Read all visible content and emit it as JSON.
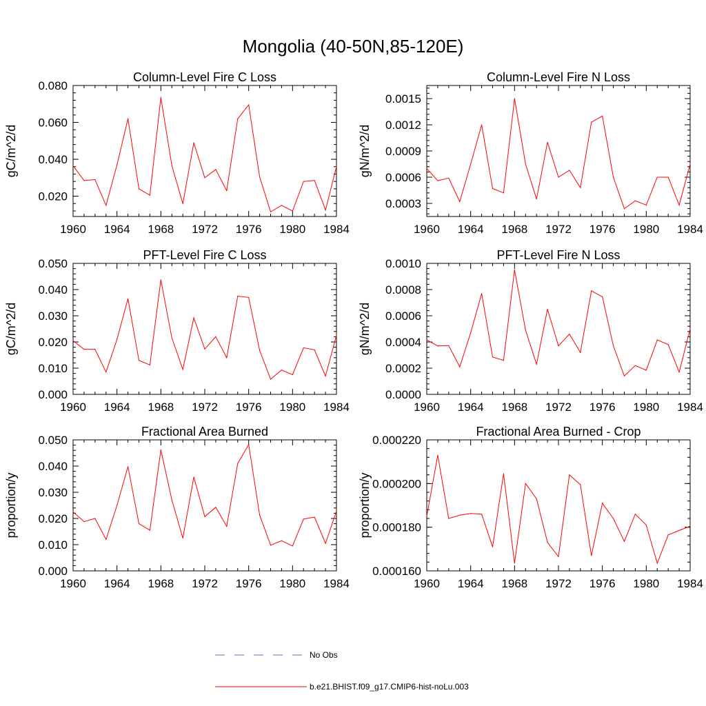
{
  "figure_title": "Mongolia (40-50N,85-120E)",
  "legend": [
    {
      "label": "No Obs",
      "color": "#6666cc",
      "style": "dashed"
    },
    {
      "label": "b.e21.BHIST.f09_g17.CMIP6-hist-noLu.003",
      "color": "#ff0000",
      "style": "solid"
    }
  ],
  "chart_data": [
    {
      "type": "line",
      "title": "Column-Level Fire C Loss",
      "ylabel": "gC/m^2/d",
      "xlim": [
        1960,
        1984
      ],
      "ylim": [
        0.009,
        0.08
      ],
      "xticks": [
        "1960",
        "1964",
        "1968",
        "1972",
        "1976",
        "1980",
        "1984"
      ],
      "yticks": [
        0.02,
        0.04,
        0.06,
        0.08
      ],
      "ytick_labels": [
        "0.020",
        "0.040",
        "0.060",
        "0.080"
      ],
      "series_color": "#ff0000",
      "x": [
        1960,
        1961,
        1962,
        1963,
        1964,
        1965,
        1966,
        1967,
        1968,
        1969,
        1970,
        1971,
        1972,
        1973,
        1974,
        1975,
        1976,
        1977,
        1978,
        1979,
        1980,
        1981,
        1982,
        1983,
        1984
      ],
      "values": [
        0.0365,
        0.0285,
        0.029,
        0.015,
        0.037,
        0.062,
        0.024,
        0.0205,
        0.0735,
        0.0365,
        0.016,
        0.049,
        0.03,
        0.0345,
        0.023,
        0.062,
        0.0695,
        0.0305,
        0.0115,
        0.015,
        0.012,
        0.028,
        0.0285,
        0.0125,
        0.036
      ]
    },
    {
      "type": "line",
      "title": "Column-Level Fire N Loss",
      "ylabel": "gN/m^2/d",
      "xlim": [
        1960,
        1984
      ],
      "ylim": [
        0.00015,
        0.00165
      ],
      "xticks": [
        "1960",
        "1964",
        "1968",
        "1972",
        "1976",
        "1980",
        "1984"
      ],
      "yticks": [
        0.0003,
        0.0006,
        0.0009,
        0.0012,
        0.0015
      ],
      "ytick_labels": [
        "0.0003",
        "0.0006",
        "0.0009",
        "0.0012",
        "0.0015"
      ],
      "series_color": "#ff0000",
      "x": [
        1960,
        1961,
        1962,
        1963,
        1964,
        1965,
        1966,
        1967,
        1968,
        1969,
        1970,
        1971,
        1972,
        1973,
        1974,
        1975,
        1976,
        1977,
        1978,
        1979,
        1980,
        1981,
        1982,
        1983,
        1984
      ],
      "values": [
        0.0007,
        0.00056,
        0.00059,
        0.00032,
        0.00075,
        0.0012,
        0.00047,
        0.00042,
        0.0015,
        0.00075,
        0.00035,
        0.001,
        0.0006,
        0.00068,
        0.00048,
        0.00123,
        0.0013,
        0.0006,
        0.00024,
        0.00033,
        0.00028,
        0.0006,
        0.0006,
        0.00028,
        0.00075
      ]
    },
    {
      "type": "line",
      "title": "PFT-Level Fire C Loss",
      "ylabel": "gC/m^2/d",
      "xlim": [
        1960,
        1984
      ],
      "ylim": [
        0,
        0.05
      ],
      "xticks": [
        "1960",
        "1964",
        "1968",
        "1972",
        "1976",
        "1980",
        "1984"
      ],
      "yticks": [
        0,
        0.01,
        0.02,
        0.03,
        0.04,
        0.05
      ],
      "ytick_labels": [
        "0.000",
        "0.010",
        "0.020",
        "0.030",
        "0.040",
        "0.050"
      ],
      "series_color": "#ff0000",
      "x": [
        1960,
        1961,
        1962,
        1963,
        1964,
        1965,
        1966,
        1967,
        1968,
        1969,
        1970,
        1971,
        1972,
        1973,
        1974,
        1975,
        1976,
        1977,
        1978,
        1979,
        1980,
        1981,
        1982,
        1983,
        1984
      ],
      "values": [
        0.0205,
        0.0172,
        0.0172,
        0.0085,
        0.021,
        0.0365,
        0.013,
        0.0112,
        0.0437,
        0.0215,
        0.0095,
        0.0292,
        0.0173,
        0.022,
        0.014,
        0.0375,
        0.037,
        0.0168,
        0.0058,
        0.0093,
        0.0075,
        0.0178,
        0.017,
        0.007,
        0.0225
      ]
    },
    {
      "type": "line",
      "title": "PFT-Level Fire N Loss",
      "ylabel": "gN/m^2/d",
      "xlim": [
        1960,
        1984
      ],
      "ylim": [
        0,
        0.001
      ],
      "xticks": [
        "1960",
        "1964",
        "1968",
        "1972",
        "1976",
        "1980",
        "1984"
      ],
      "yticks": [
        0,
        0.0002,
        0.0004,
        0.0006,
        0.0008,
        0.001
      ],
      "ytick_labels": [
        "0.0000",
        "0.0002",
        "0.0004",
        "0.0006",
        "0.0008",
        "0.0010"
      ],
      "series_color": "#ff0000",
      "x": [
        1960,
        1961,
        1962,
        1963,
        1964,
        1965,
        1966,
        1967,
        1968,
        1969,
        1970,
        1971,
        1972,
        1973,
        1974,
        1975,
        1976,
        1977,
        1978,
        1979,
        1980,
        1981,
        1982,
        1983,
        1984
      ],
      "values": [
        0.000415,
        0.00037,
        0.000372,
        0.00021,
        0.00047,
        0.00077,
        0.000285,
        0.00026,
        0.00095,
        0.00049,
        0.00023,
        0.00065,
        0.00037,
        0.00046,
        0.00032,
        0.00079,
        0.000745,
        0.00037,
        0.00014,
        0.00022,
        0.000185,
        0.000415,
        0.00038,
        0.00017,
        0.0005
      ]
    },
    {
      "type": "line",
      "title": "Fractional Area Burned",
      "ylabel": "proportion/y",
      "xlim": [
        1960,
        1984
      ],
      "ylim": [
        0,
        0.05
      ],
      "xticks": [
        "1960",
        "1964",
        "1968",
        "1972",
        "1976",
        "1980",
        "1984"
      ],
      "yticks": [
        0,
        0.01,
        0.02,
        0.03,
        0.04,
        0.05
      ],
      "ytick_labels": [
        "0.000",
        "0.010",
        "0.020",
        "0.030",
        "0.040",
        "0.050"
      ],
      "series_color": "#ff0000",
      "x": [
        1960,
        1961,
        1962,
        1963,
        1964,
        1965,
        1966,
        1967,
        1968,
        1969,
        1970,
        1971,
        1972,
        1973,
        1974,
        1975,
        1976,
        1977,
        1978,
        1979,
        1980,
        1981,
        1982,
        1983,
        1984
      ],
      "values": [
        0.0225,
        0.0188,
        0.02,
        0.012,
        0.025,
        0.0398,
        0.018,
        0.0155,
        0.0462,
        0.027,
        0.0125,
        0.0358,
        0.0207,
        0.0243,
        0.017,
        0.041,
        0.0482,
        0.0213,
        0.0098,
        0.0115,
        0.0095,
        0.0198,
        0.0205,
        0.0105,
        0.0228
      ]
    },
    {
      "type": "line",
      "title": "Fractional Area Burned - Crop",
      "ylabel": "proportion/y",
      "xlim": [
        1960,
        1984
      ],
      "ylim": [
        0.00016,
        0.00022
      ],
      "xticks": [
        "1960",
        "1964",
        "1968",
        "1972",
        "1976",
        "1980",
        "1984"
      ],
      "yticks": [
        0.00016,
        0.00018,
        0.0002,
        0.00022
      ],
      "ytick_labels": [
        "0.000160",
        "0.000180",
        "0.000200",
        "0.000220"
      ],
      "series_color": "#ff0000",
      "x": [
        1960,
        1961,
        1962,
        1963,
        1964,
        1965,
        1966,
        1967,
        1968,
        1969,
        1970,
        1971,
        1972,
        1973,
        1974,
        1975,
        1976,
        1977,
        1978,
        1979,
        1980,
        1981,
        1982,
        1983,
        1984
      ],
      "values": [
        0.000185,
        0.000213,
        0.000184,
        0.0001855,
        0.0001863,
        0.000186,
        0.000171,
        0.0002045,
        0.0001635,
        0.0002,
        0.000193,
        0.000173,
        0.0001665,
        0.000204,
        0.0001995,
        0.000167,
        0.000191,
        0.000184,
        0.0001735,
        0.000186,
        0.000181,
        0.0001635,
        0.0001765,
        0.0001785,
        0.0001805
      ]
    }
  ]
}
